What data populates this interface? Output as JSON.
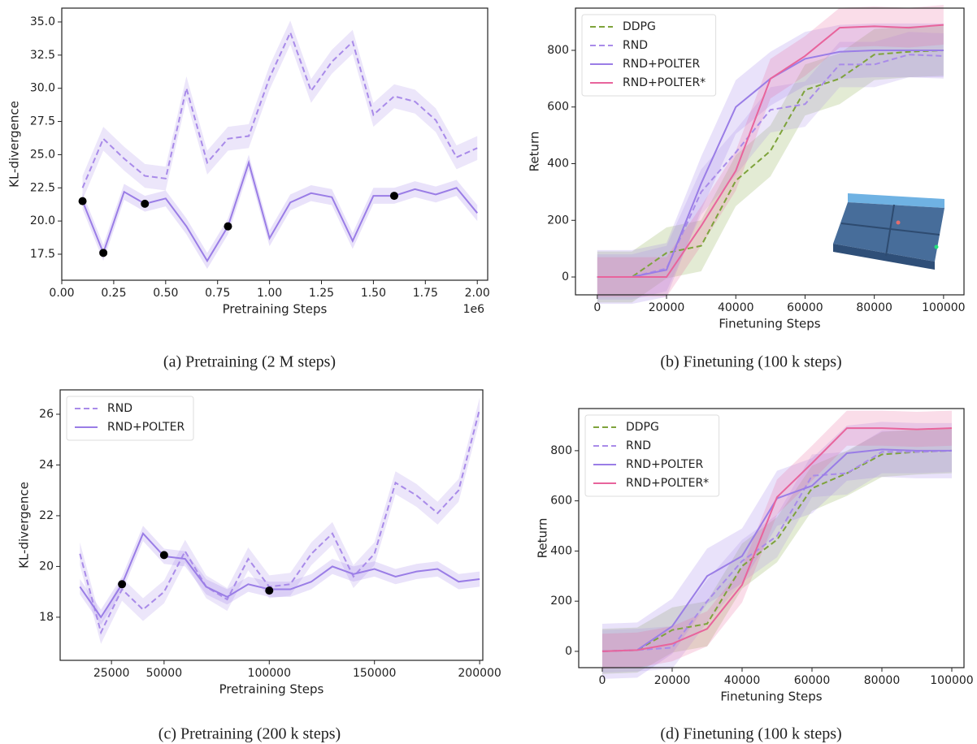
{
  "chart_data": [
    {
      "type": "line",
      "caption": "(a) Pretraining (2 M steps)",
      "xlabel": "Pretraining Steps",
      "ylabel": "KL-divergence",
      "x_offset_label": "1e6",
      "x": [
        0.1,
        0.2,
        0.3,
        0.4,
        0.5,
        0.6,
        0.7,
        0.8,
        0.9,
        1.0,
        1.1,
        1.2,
        1.3,
        1.4,
        1.5,
        1.6,
        1.7,
        1.8,
        1.9,
        2.0
      ],
      "xlim": [
        0,
        2.05
      ],
      "ylim": [
        15.54,
        36.04
      ],
      "xticks": [
        {
          "value": 0,
          "label": "0.00"
        },
        {
          "value": 0.25,
          "label": "0.25"
        },
        {
          "value": 0.5,
          "label": "0.50"
        },
        {
          "value": 0.75,
          "label": "0.75"
        },
        {
          "value": 1,
          "label": "1.00"
        },
        {
          "value": 1.25,
          "label": "1.25"
        },
        {
          "value": 1.5,
          "label": "1.50"
        },
        {
          "value": 1.75,
          "label": "1.75"
        },
        {
          "value": 2,
          "label": "2.00"
        }
      ],
      "yticks": [
        {
          "value": 17.5,
          "label": "17.5"
        },
        {
          "value": 20,
          "label": "20.0"
        },
        {
          "value": 22.5,
          "label": "22.5"
        },
        {
          "value": 25,
          "label": "25.0"
        },
        {
          "value": 27.5,
          "label": "27.5"
        },
        {
          "value": 30,
          "label": "30.0"
        },
        {
          "value": 32.5,
          "label": "32.5"
        },
        {
          "value": 35,
          "label": "35.0"
        }
      ],
      "series": [
        {
          "color": "#a98be9",
          "linestyle": "dashed",
          "error": 0.9,
          "values": [
            22.5,
            26.2,
            24.7,
            23.4,
            23.2,
            30.0,
            24.4,
            26.2,
            26.4,
            30.8,
            34.2,
            29.8,
            32.0,
            33.5,
            28.0,
            29.4,
            29.0,
            27.6,
            24.8,
            25.5
          ]
        },
        {
          "color": "#9a7de6",
          "linestyle": "solid",
          "error": 0.6,
          "values": [
            21.5,
            17.6,
            22.2,
            21.3,
            21.7,
            19.6,
            17.0,
            19.6,
            24.4,
            18.7,
            21.4,
            22.1,
            21.8,
            18.5,
            21.9,
            21.9,
            22.4,
            22.0,
            22.5,
            20.6
          ]
        }
      ],
      "points": {
        "color": "#000000",
        "x": [
          0.1,
          0.2,
          0.4,
          0.8,
          1.6
        ],
        "values": [
          21.5,
          17.6,
          21.3,
          19.6,
          21.9
        ]
      }
    },
    {
      "type": "line",
      "caption": "(b) Finetuning (100 k steps)",
      "xlabel": "Finetuning Steps",
      "ylabel": "Return",
      "legend": "upper left",
      "x": [
        0,
        10000,
        20000,
        30000,
        40000,
        50000,
        60000,
        70000,
        80000,
        90000,
        100000
      ],
      "xlim": [
        -6300,
        105900
      ],
      "ylim": [
        -63,
        949
      ],
      "xticks": [
        0,
        20000,
        40000,
        60000,
        80000,
        100000
      ],
      "yticks": [
        0,
        200,
        400,
        600,
        800
      ],
      "series": [
        {
          "name": "DDPG",
          "color": "#7ea33b",
          "linestyle": "dashed",
          "error": 90,
          "values": [
            0,
            0,
            85,
            110,
            340,
            445,
            660,
            700,
            785,
            795,
            800
          ]
        },
        {
          "name": "RND",
          "color": "#a98be9",
          "linestyle": "dashed",
          "error": 80,
          "values": [
            0,
            0,
            30,
            300,
            440,
            590,
            610,
            750,
            750,
            785,
            780
          ]
        },
        {
          "name": "RND+POLTER",
          "color": "#9a7de6",
          "linestyle": "solid",
          "error": 95,
          "values": [
            0,
            0,
            25,
            330,
            600,
            700,
            770,
            795,
            800,
            800,
            800
          ]
        },
        {
          "name": "RND+POLTER*",
          "color": "#e8649c",
          "linestyle": "solid",
          "error": 70,
          "values": [
            0,
            0,
            0,
            180,
            375,
            700,
            780,
            880,
            885,
            880,
            890
          ]
        }
      ]
    },
    {
      "type": "line",
      "caption": "(c) Pretraining (200 k steps)",
      "xlabel": "Pretraining Steps",
      "ylabel": "KL-divergence",
      "legend": "upper left",
      "x": [
        10000,
        20000,
        30000,
        40000,
        50000,
        60000,
        70000,
        80000,
        90000,
        100000,
        110000,
        120000,
        130000,
        140000,
        150000,
        160000,
        170000,
        180000,
        190000,
        200000
      ],
      "xlim": [
        600,
        201500
      ],
      "ylim": [
        16.3,
        26.96
      ],
      "xticks": [
        25000,
        50000,
        100000,
        150000,
        200000
      ],
      "yticks": [
        18,
        20,
        22,
        24,
        26
      ],
      "series": [
        {
          "name": "RND",
          "color": "#a98be9",
          "linestyle": "dashed",
          "error": 0.45,
          "values": [
            20.5,
            17.4,
            19.1,
            18.3,
            19.0,
            20.6,
            19.2,
            18.7,
            20.3,
            19.2,
            19.3,
            20.5,
            21.3,
            19.6,
            20.5,
            23.3,
            22.8,
            22.1,
            23.0,
            26.2
          ]
        },
        {
          "name": "RND+POLTER",
          "color": "#9a7de6",
          "linestyle": "solid",
          "error": 0.3,
          "values": [
            19.2,
            18.0,
            19.3,
            21.3,
            20.4,
            20.3,
            19.2,
            18.8,
            19.3,
            19.1,
            19.1,
            19.4,
            20.0,
            19.7,
            19.9,
            19.6,
            19.8,
            19.9,
            19.4,
            19.5
          ]
        }
      ],
      "points": {
        "color": "#000000",
        "x": [
          30000,
          50000,
          100000
        ],
        "values": [
          19.3,
          20.45,
          19.05
        ]
      }
    },
    {
      "type": "line",
      "caption": "(d) Finetuning (100 k steps)",
      "xlabel": "Finetuning Steps",
      "ylabel": "Return",
      "legend": "upper left",
      "x": [
        0,
        10000,
        20000,
        30000,
        40000,
        50000,
        60000,
        70000,
        80000,
        90000,
        100000
      ],
      "xlim": [
        -6740,
        103490
      ],
      "ylim": [
        -65,
        968
      ],
      "xticks": [
        0,
        20000,
        40000,
        60000,
        80000,
        100000
      ],
      "yticks": [
        0,
        200,
        400,
        600,
        800
      ],
      "series": [
        {
          "name": "DDPG",
          "color": "#7ea33b",
          "linestyle": "dashed",
          "error": 90,
          "values": [
            0,
            5,
            85,
            110,
            340,
            445,
            650,
            710,
            785,
            795,
            800
          ]
        },
        {
          "name": "RND",
          "color": "#a98be9",
          "linestyle": "dashed",
          "error": 85,
          "values": [
            0,
            5,
            15,
            200,
            360,
            460,
            700,
            710,
            795,
            795,
            800
          ]
        },
        {
          "name": "RND+POLTER",
          "color": "#9a7de6",
          "linestyle": "solid",
          "error": 110,
          "values": [
            0,
            5,
            100,
            300,
            380,
            610,
            660,
            790,
            805,
            800,
            800
          ]
        },
        {
          "name": "RND+POLTER*",
          "color": "#e8649c",
          "linestyle": "solid",
          "error": 70,
          "values": [
            0,
            5,
            30,
            90,
            265,
            615,
            750,
            890,
            890,
            885,
            890
          ]
        }
      ]
    }
  ]
}
